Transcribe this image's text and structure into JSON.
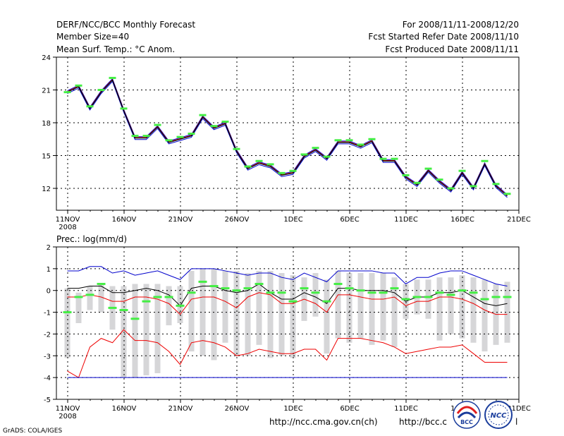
{
  "header": {
    "left": [
      "DERF/NCC/BCC Monthly Forecast",
      "Member Size=40",
      "Mean Surf. Temp.: °C Anom."
    ],
    "right": [
      "For 2008/11/11-2008/12/20",
      "Fcst Started Refer Date 2008/11/10",
      "Fcst Produced Date 2008/11/11"
    ]
  },
  "footer": {
    "grads": "GrADS: COLA/IGES",
    "url1": "http://ncc.cma.gov.cn(ch)",
    "url2": "http://bcc.c",
    "url2_tail": "l",
    "logo_left_text": "BCC",
    "logo_right_text": "NCC"
  },
  "colors": {
    "red": "#ee0000",
    "blue": "#0000cc",
    "green": "#44ee44",
    "gray": "#d6d6d8",
    "black": "#000000"
  },
  "chart_data": [
    {
      "type": "line",
      "title": "Mean Surf. Temp.: °C Anom.",
      "ylim": [
        10,
        24
      ],
      "xlim": [
        0,
        39
      ],
      "yticks": [
        12,
        15,
        18,
        21,
        24
      ],
      "xticks": [
        {
          "x": 0,
          "label": "11NOV",
          "sub": "2008"
        },
        {
          "x": 5,
          "label": "16NOV"
        },
        {
          "x": 10,
          "label": "21NOV"
        },
        {
          "x": 15,
          "label": "26NOV"
        },
        {
          "x": 20,
          "label": "1DEC"
        },
        {
          "x": 25,
          "label": "6DEC"
        },
        {
          "x": 30,
          "label": "11DEC"
        },
        {
          "x": 35,
          "label": "16DEC"
        },
        {
          "x": 40,
          "label": "21DEC"
        }
      ],
      "series": [
        {
          "name": "ensemble mean",
          "color": "#000000",
          "values": [
            20.8,
            21.3,
            19.3,
            20.8,
            21.9,
            19.1,
            16.6,
            16.6,
            17.6,
            16.2,
            16.5,
            16.8,
            18.5,
            17.5,
            17.9,
            15.4,
            13.8,
            14.3,
            14.0,
            13.2,
            13.4,
            14.9,
            15.5,
            14.7,
            16.2,
            16.2,
            15.8,
            16.3,
            14.5,
            14.5,
            13.0,
            12.3,
            13.6,
            12.6,
            11.8,
            13.4,
            12.0,
            14.2,
            12.2,
            11.3
          ]
        },
        {
          "name": "observed",
          "color": "#44ee44",
          "values": [
            20.8,
            21.4,
            19.5,
            21.0,
            22.1,
            19.3,
            16.8,
            16.8,
            17.8,
            16.4,
            16.7,
            17.0,
            18.7,
            17.7,
            18.1,
            15.6,
            14.0,
            14.5,
            14.2,
            13.4,
            13.6,
            15.1,
            15.7,
            14.9,
            16.4,
            16.4,
            16.0,
            16.5,
            14.7,
            14.7,
            13.2,
            12.5,
            13.8,
            12.8,
            12.0,
            13.6,
            12.2,
            14.5,
            12.4,
            11.5
          ]
        }
      ]
    },
    {
      "type": "line",
      "title": "Prec.: log(mm/d)",
      "ylim": [
        -5,
        2
      ],
      "xlim": [
        0,
        39
      ],
      "yticks": [
        -5,
        -4,
        -3,
        -2,
        -1,
        0,
        1,
        2
      ],
      "xticks": [
        {
          "x": 0,
          "label": "11NOV",
          "sub": "2008"
        },
        {
          "x": 5,
          "label": "16NOV"
        },
        {
          "x": 10,
          "label": "21NOV"
        },
        {
          "x": 15,
          "label": "26NOV"
        },
        {
          "x": 20,
          "label": "1DEC"
        },
        {
          "x": 25,
          "label": "6DEC"
        },
        {
          "x": 30,
          "label": "11DEC"
        },
        {
          "x": 35,
          "label": "16DEC"
        },
        {
          "x": 40,
          "label": "21DEC"
        }
      ],
      "bars": {
        "name": "member spread",
        "high": [
          0.1,
          -0.1,
          0.2,
          0.3,
          0.2,
          0.2,
          0.3,
          0.3,
          0.3,
          0.2,
          0.2,
          0.9,
          1.0,
          1.0,
          0.9,
          0.9,
          0.8,
          0.9,
          0.9,
          0.8,
          0.7,
          0.6,
          0.8,
          0.5,
          0.9,
          0.8,
          0.8,
          0.8,
          0.8,
          0.6,
          0.3,
          0.5,
          0.5,
          0.6,
          0.6,
          0.7,
          0.6,
          0.5,
          0.3,
          0.4
        ],
        "low": [
          -3.1,
          -1.5,
          -0.9,
          -1.0,
          -1.8,
          -4.0,
          -4.0,
          -3.9,
          -3.8,
          -1.6,
          -1.5,
          -2.8,
          -3.0,
          -3.2,
          -2.4,
          -3.0,
          -3.0,
          -2.5,
          -3.1,
          -3.0,
          -3.1,
          -1.4,
          -1.2,
          -2.9,
          -2.2,
          -2.4,
          -2.2,
          -2.5,
          -2.3,
          -2.6,
          -1.3,
          -1.1,
          -1.3,
          -2.3,
          -2.0,
          -2.2,
          -2.4,
          -2.8,
          -2.5,
          -2.4
        ]
      },
      "series": [
        {
          "name": "max",
          "color": "#0000cc",
          "values": [
            0.9,
            0.9,
            1.1,
            1.1,
            0.8,
            0.9,
            0.7,
            0.8,
            0.9,
            0.7,
            0.5,
            1.0,
            1.0,
            1.0,
            0.9,
            0.8,
            0.7,
            0.8,
            0.8,
            0.6,
            0.5,
            0.8,
            0.6,
            0.4,
            0.9,
            0.9,
            0.9,
            0.9,
            0.8,
            0.8,
            0.3,
            0.6,
            0.6,
            0.8,
            0.9,
            0.9,
            0.7,
            0.5,
            0.3,
            0.2
          ]
        },
        {
          "name": "upper quantile",
          "color": "#ee0000",
          "values": [
            -0.3,
            -0.3,
            -0.2,
            -0.3,
            -0.5,
            -0.5,
            -0.3,
            -0.3,
            -0.4,
            -0.6,
            -1.1,
            -0.4,
            -0.3,
            -0.3,
            -0.5,
            -0.8,
            -0.3,
            -0.1,
            -0.2,
            -0.6,
            -0.6,
            -0.4,
            -0.6,
            -1.0,
            -0.2,
            -0.2,
            -0.3,
            -0.4,
            -0.4,
            -0.3,
            -0.7,
            -0.5,
            -0.5,
            -0.3,
            -0.3,
            -0.4,
            -0.6,
            -0.9,
            -1.1,
            -1.1
          ]
        },
        {
          "name": "ensemble mean",
          "color": "#000000",
          "values": [
            0.1,
            0.1,
            0.2,
            0.2,
            -0.1,
            -0.1,
            0.0,
            0.1,
            0.0,
            -0.2,
            -0.7,
            0.1,
            0.2,
            0.2,
            0.0,
            -0.1,
            0.0,
            0.3,
            -0.1,
            -0.4,
            -0.4,
            -0.1,
            -0.3,
            -0.6,
            0.1,
            0.1,
            0.0,
            0.0,
            0.0,
            -0.1,
            -0.5,
            -0.3,
            -0.3,
            -0.1,
            -0.1,
            0.0,
            -0.3,
            -0.6,
            -0.7,
            -0.6
          ]
        },
        {
          "name": "lower quantile",
          "color": "#ee0000",
          "values": [
            -3.7,
            -4.0,
            -2.6,
            -2.2,
            -2.4,
            -1.8,
            -2.3,
            -2.3,
            -2.4,
            -2.8,
            -3.4,
            -2.4,
            -2.3,
            -2.4,
            -2.6,
            -3.0,
            -2.9,
            -2.7,
            -2.8,
            -2.9,
            -2.9,
            -2.7,
            -2.7,
            -3.2,
            -2.2,
            -2.2,
            -2.2,
            -2.3,
            -2.4,
            -2.6,
            -2.9,
            -2.8,
            -2.7,
            -2.6,
            -2.6,
            -2.5,
            -2.9,
            -3.3,
            -3.3,
            -3.3
          ]
        },
        {
          "name": "min",
          "color": "#0000cc",
          "values": [
            -4.0,
            -4.0,
            -4.0,
            -4.0,
            -4.0,
            -4.0,
            -4.0,
            -4.0,
            -4.0,
            -4.0,
            -4.0,
            -4.0,
            -4.0,
            -4.0,
            -4.0,
            -4.0,
            -4.0,
            -4.0,
            -4.0,
            -4.0,
            -4.0,
            -4.0,
            -4.0,
            -4.0,
            -4.0,
            -4.0,
            -4.0,
            -4.0,
            -4.0,
            -4.0,
            -4.0,
            -4.0,
            -4.0,
            -4.0,
            -4.0,
            -4.0,
            -4.0,
            -4.0,
            -4.0,
            -4.0
          ]
        }
      ],
      "markers": {
        "name": "observed",
        "color": "#44ee44",
        "values": [
          -1.0,
          -0.3,
          -0.2,
          0.3,
          -0.8,
          -0.9,
          -1.3,
          -0.5,
          -0.3,
          -0.3,
          -0.7,
          -0.1,
          0.4,
          0.2,
          0.1,
          0.0,
          0.1,
          0.3,
          -0.1,
          -0.1,
          -0.5,
          0.1,
          -0.1,
          -0.5,
          0.3,
          0.1,
          0.0,
          -0.1,
          -0.1,
          0.1,
          -0.4,
          -0.3,
          -0.3,
          -0.1,
          -0.2,
          0.0,
          -0.1,
          -0.4,
          -0.3,
          -0.3
        ]
      }
    }
  ]
}
